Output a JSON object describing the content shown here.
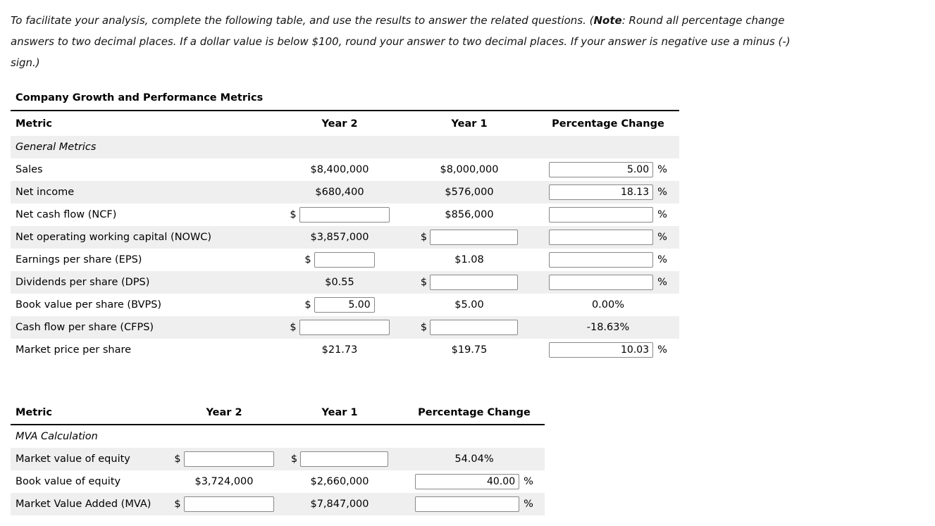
{
  "symbols": {
    "dollar": "$",
    "percent": "%"
  },
  "intro": {
    "part1": "To facilitate your analysis, complete the following table, and use the results to answer the related questions. (",
    "note": "Note",
    "part2": ": Round all percentage change answers to two decimal places. If a dollar value is below $100, round your answer to two decimal places. If your answer is negative use a minus (-) sign.)"
  },
  "table1": {
    "title": "Company Growth and Performance Metrics",
    "headers": {
      "metric": "Metric",
      "year2": "Year 2",
      "year1": "Year 1",
      "pct": "Percentage Change"
    },
    "section_label": "General Metrics",
    "rows": [
      {
        "label": "Sales",
        "year2": "$8,400,000",
        "year1": "$8,000,000",
        "pct_input": "5.00"
      },
      {
        "label": "Net income",
        "year2": "$680,400",
        "year1": "$576,000",
        "pct_input": "18.13"
      },
      {
        "label": "Net cash flow (NCF)",
        "year2_input": "",
        "year1": "$856,000",
        "pct_input": ""
      },
      {
        "label": "Net operating working capital (NOWC)",
        "year2": "$3,857,000",
        "year1_input": "",
        "pct_input": ""
      },
      {
        "label": "Earnings per share (EPS)",
        "year2_input": "",
        "year1": "$1.08",
        "pct_input": ""
      },
      {
        "label": "Dividends per share (DPS)",
        "year2": "$0.55",
        "year1_input": "",
        "pct_input": ""
      },
      {
        "label": "Book value per share (BVPS)",
        "year2_input": "5.00",
        "year1": "$5.00",
        "pct_static": "0.00%"
      },
      {
        "label": "Cash flow per share (CFPS)",
        "year2_input": "",
        "year1_input": "",
        "pct_static": "-18.63%"
      },
      {
        "label": "Market price per share",
        "year2": "$21.73",
        "year1": "$19.75",
        "pct_input": "10.03"
      }
    ]
  },
  "table2": {
    "headers": {
      "metric": "Metric",
      "year2": "Year 2",
      "year1": "Year 1",
      "pct": "Percentage Change"
    },
    "section_label": "MVA Calculation",
    "rows": [
      {
        "label": "Market value of equity",
        "year2_input": "",
        "year1_input": "",
        "pct_static": "54.04%"
      },
      {
        "label": "Book value of equity",
        "year2": "$3,724,000",
        "year1": "$2,660,000",
        "pct_input": "40.00"
      },
      {
        "label": "Market Value Added (MVA)",
        "year2_input": "",
        "year1": "$7,847,000",
        "pct_input": ""
      }
    ]
  }
}
